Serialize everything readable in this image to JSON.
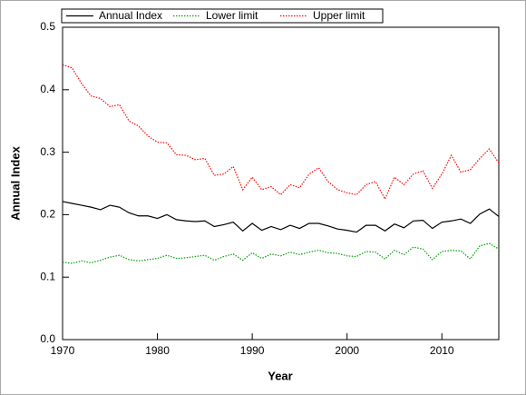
{
  "chart_data": {
    "type": "line",
    "x_label": "Year",
    "y_label": "Annual Index",
    "x": [
      1970,
      1971,
      1972,
      1973,
      1974,
      1975,
      1976,
      1977,
      1978,
      1979,
      1980,
      1981,
      1982,
      1983,
      1984,
      1985,
      1986,
      1987,
      1988,
      1989,
      1990,
      1991,
      1992,
      1993,
      1994,
      1995,
      1996,
      1997,
      1998,
      1999,
      2000,
      2001,
      2002,
      2003,
      2004,
      2005,
      2006,
      2007,
      2008,
      2009,
      2010,
      2011,
      2012,
      2013,
      2014,
      2015,
      2016
    ],
    "series": [
      {
        "name": "Annual Index",
        "color": "#000000",
        "dash": "solid",
        "values": [
          0.221,
          0.218,
          0.215,
          0.212,
          0.208,
          0.215,
          0.212,
          0.203,
          0.198,
          0.198,
          0.194,
          0.2,
          0.192,
          0.19,
          0.189,
          0.19,
          0.181,
          0.184,
          0.188,
          0.174,
          0.186,
          0.175,
          0.181,
          0.176,
          0.183,
          0.178,
          0.186,
          0.186,
          0.182,
          0.177,
          0.175,
          0.172,
          0.183,
          0.183,
          0.174,
          0.185,
          0.179,
          0.19,
          0.191,
          0.178,
          0.188,
          0.19,
          0.193,
          0.186,
          0.201,
          0.209,
          0.197
        ]
      },
      {
        "name": "Lower limit",
        "color": "#00a000",
        "dash": "dotted",
        "values": [
          0.124,
          0.122,
          0.126,
          0.123,
          0.127,
          0.132,
          0.135,
          0.128,
          0.126,
          0.128,
          0.13,
          0.135,
          0.13,
          0.131,
          0.133,
          0.135,
          0.127,
          0.133,
          0.137,
          0.127,
          0.139,
          0.13,
          0.137,
          0.134,
          0.14,
          0.136,
          0.14,
          0.143,
          0.139,
          0.138,
          0.134,
          0.133,
          0.141,
          0.14,
          0.129,
          0.143,
          0.136,
          0.148,
          0.145,
          0.128,
          0.141,
          0.143,
          0.142,
          0.129,
          0.15,
          0.154,
          0.145
        ]
      },
      {
        "name": "Upper limit",
        "color": "#ff0000",
        "dash": "dotted",
        "values": [
          0.44,
          0.435,
          0.41,
          0.39,
          0.386,
          0.373,
          0.376,
          0.35,
          0.342,
          0.326,
          0.316,
          0.315,
          0.296,
          0.295,
          0.288,
          0.29,
          0.263,
          0.265,
          0.277,
          0.24,
          0.26,
          0.24,
          0.245,
          0.232,
          0.248,
          0.243,
          0.265,
          0.275,
          0.253,
          0.24,
          0.235,
          0.232,
          0.248,
          0.253,
          0.225,
          0.26,
          0.248,
          0.265,
          0.27,
          0.242,
          0.265,
          0.295,
          0.268,
          0.272,
          0.29,
          0.305,
          0.283
        ]
      }
    ],
    "xlim": [
      1970,
      2016
    ],
    "xticks": [
      1970,
      1980,
      1990,
      2000,
      2010
    ],
    "ylim": [
      0,
      0.5
    ],
    "yticks": [
      {
        "value": 0,
        "label": "0.0"
      },
      0.1,
      0.2,
      0.3,
      0.4,
      0.5
    ],
    "legend": "top"
  }
}
